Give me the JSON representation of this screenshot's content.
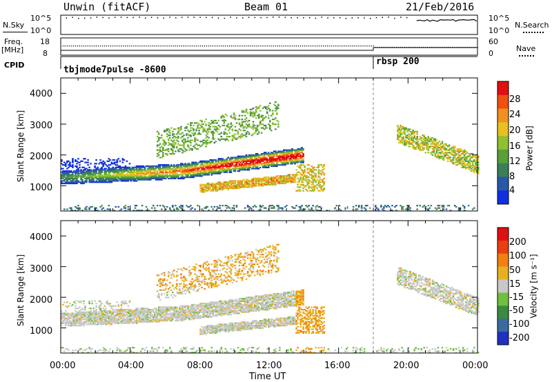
{
  "header": {
    "station": "Unwin (fitACF)",
    "beam": "Beam 01",
    "date": "21/Feb/2016"
  },
  "strips": {
    "nsky_label": "N.Sky",
    "nsearch_label": "N.Search",
    "nsky_ticks": [
      "10^5",
      "10^0"
    ],
    "nsearch_ticks": [
      "10^5",
      "10^0"
    ],
    "freq_label_line1": "Freq.",
    "freq_label_line2": "[MHz]",
    "freq_ticks": [
      "18",
      "8"
    ],
    "nave_label": "Nave",
    "nave_ticks": [
      "60",
      "0"
    ],
    "cpid_label": "CPID",
    "cpid_left": "tbjmode7pulse -8600",
    "cpid_right": "rbsp 200"
  },
  "power_panel": {
    "ylabel": "Slant Range [km]",
    "yticks": [
      "4000",
      "3000",
      "2000",
      "1000"
    ],
    "colorbar_label": "Power [dB]",
    "colorbar_ticks": [
      "28",
      "24",
      "20",
      "16",
      "12",
      "8",
      "4"
    ]
  },
  "velocity_panel": {
    "ylabel": "Slant Range [km]",
    "yticks": [
      "4000",
      "3000",
      "2000",
      "1000"
    ],
    "colorbar_label": "Velocity [m s⁻¹]",
    "colorbar_ticks": [
      "200",
      "100",
      "50",
      "15",
      "-15",
      "-50",
      "-100",
      "-200"
    ]
  },
  "xaxis": {
    "ticks": [
      "00:00",
      "04:00",
      "08:00",
      "12:00",
      "16:00",
      "20:00",
      "00:00"
    ],
    "label": "Time UT"
  },
  "colors": {
    "power_scale": [
      "#1030e0",
      "#2a58a8",
      "#3b7e5a",
      "#58a038",
      "#90c030",
      "#e8c020",
      "#f09020",
      "#f05010",
      "#e01010"
    ],
    "velocity_scale": [
      "#2030c0",
      "#3a6aa0",
      "#3a8a40",
      "#70c040",
      "#c8c8c8",
      "#e8b020",
      "#f08010",
      "#e84010",
      "#e01010"
    ]
  },
  "chart_data": [
    {
      "type": "heatmap",
      "title": "Beam 01",
      "xlabel": "Time UT",
      "ylabel": "Slant Range [km]",
      "xlim": [
        0,
        24
      ],
      "ylim": [
        180,
        4500
      ],
      "colorbar": {
        "label": "Power [dB]",
        "range": [
          0,
          30
        ],
        "ticks": [
          4,
          8,
          12,
          16,
          20,
          24,
          28
        ]
      },
      "features": [
        {
          "t0": 0.0,
          "t1": 14.0,
          "r0": 1050,
          "r1": 1800,
          "peak_db": 24
        },
        {
          "t0": 7.0,
          "t1": 13.0,
          "r0": 1400,
          "r1": 2000,
          "peak_db": 28
        },
        {
          "t0": 6.0,
          "t1": 12.5,
          "r0": 2200,
          "r1": 3400,
          "peak_db": 16
        },
        {
          "t0": 19.5,
          "t1": 24.0,
          "r0": 1400,
          "r1": 2800,
          "peak_db": 20
        }
      ]
    },
    {
      "type": "heatmap",
      "title": "Beam 01",
      "xlabel": "Time UT",
      "ylabel": "Slant Range [km]",
      "xlim": [
        0,
        24
      ],
      "ylim": [
        180,
        4500
      ],
      "colorbar": {
        "label": "Velocity [m s⁻¹]",
        "range": [
          -250,
          250
        ],
        "ticks": [
          -200,
          -100,
          -50,
          -15,
          15,
          50,
          100,
          200
        ]
      },
      "features": [
        {
          "t0": 0.0,
          "t1": 14.0,
          "r0": 1050,
          "r1": 1800,
          "velocity": 0
        },
        {
          "t0": 6.0,
          "t1": 12.5,
          "r0": 2200,
          "r1": 3400,
          "velocity": -60
        },
        {
          "t0": 13.5,
          "t1": 14.5,
          "r0": 800,
          "r1": 1500,
          "velocity": -80
        },
        {
          "t0": 19.5,
          "t1": 24.0,
          "r0": 1000,
          "r1": 2600,
          "velocity": 0
        }
      ]
    }
  ]
}
